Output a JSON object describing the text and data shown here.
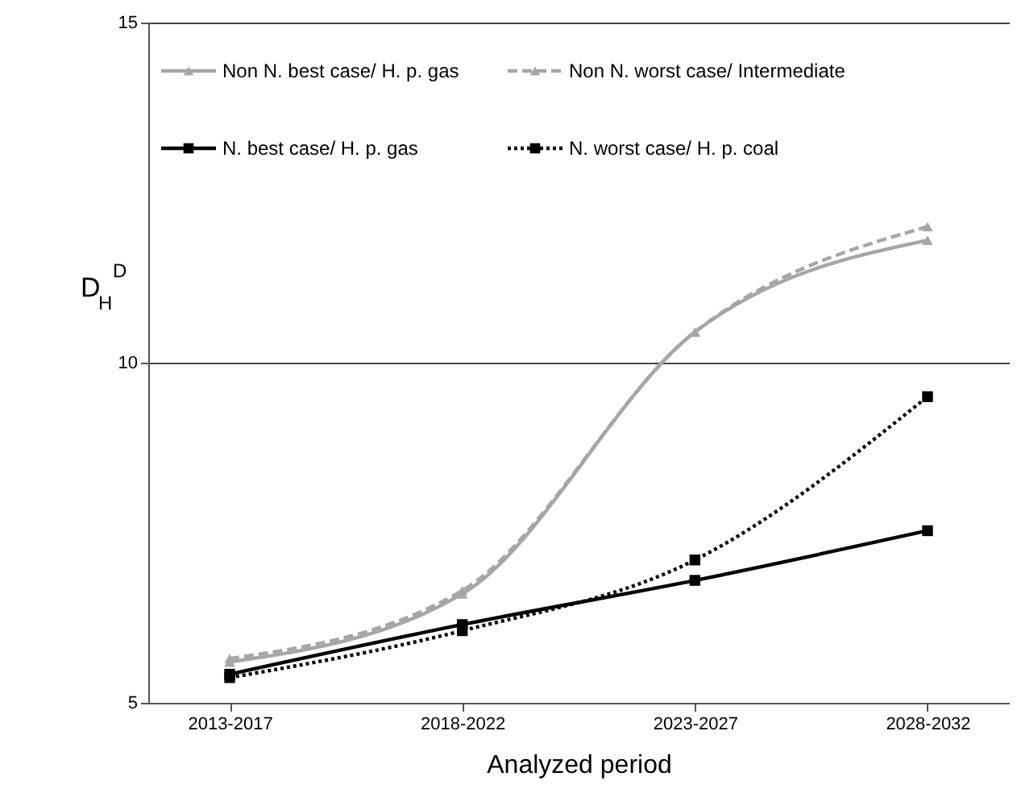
{
  "chart_data": {
    "type": "line",
    "xlabel": "Analyzed period",
    "ylabel": "D$_{H}$$^{D}$",
    "categories": [
      "2013-2017",
      "2018-2022",
      "2023-2027",
      "2028-2032"
    ],
    "series": [
      {
        "name": "Non N. best case/ H. p. gas",
        "color": "#a6a6a6",
        "marker": "triangle",
        "line_style": "solid",
        "values": [
          5.6,
          6.6,
          10.45,
          11.8
        ]
      },
      {
        "name": "Non N. worst case/ Intermediate",
        "color": "#a6a6a6",
        "marker": "triangle",
        "line_style": "dashed",
        "values": [
          5.65,
          6.65,
          10.45,
          12.0
        ]
      },
      {
        "name": "N. best case/ H. p. gas",
        "color": "#000000",
        "marker": "square",
        "line_style": "solid",
        "values": [
          5.42,
          6.15,
          6.8,
          7.53
        ]
      },
      {
        "name": "N. worst case/ H. p. coal",
        "color": "#000000",
        "marker": "square",
        "line_style": "dotted",
        "values": [
          5.37,
          6.06,
          7.1,
          9.5
        ]
      }
    ],
    "ylim": [
      5,
      15
    ],
    "yticks": [
      5,
      10,
      15
    ],
    "grid": "y",
    "legend": "top left"
  }
}
